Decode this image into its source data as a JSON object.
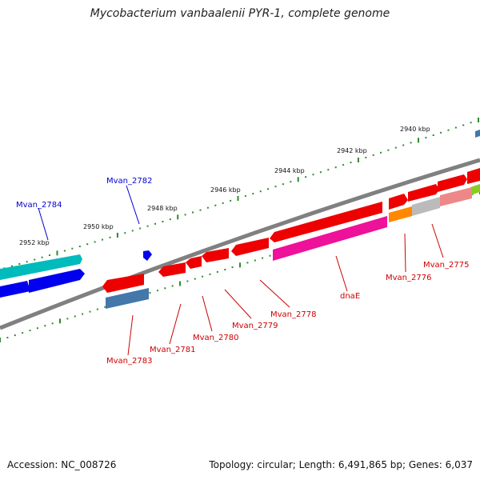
{
  "title": "Mycobacterium vanbaalenii PYR-1, complete genome",
  "footer": {
    "accession": "Accession: NC_008726",
    "summary": "Topology: circular; Length: 6,491,865 bp; Genes: 6,037"
  },
  "scale": {
    "unit": "kbp",
    "ticks": [
      "2940 kbp",
      "2942 kbp",
      "2944 kbp",
      "2946 kbp",
      "2948 kbp",
      "2950 kbp",
      "2952 kbp"
    ]
  },
  "labels": {
    "forward": [
      "Mvan_2784",
      "Mvan_2782"
    ],
    "reverse": [
      "Mvan_2783",
      "Mvan_2781",
      "Mvan_2780",
      "Mvan_2779",
      "Mvan_2778",
      "dnaE",
      "Mvan_2776",
      "Mvan_2775"
    ]
  },
  "colors": {
    "backbone": "#808080",
    "tick": "#2e8b2e",
    "forward_label": "#0000cc",
    "reverse_label": "#cc0000",
    "gene_red": "#ee0000",
    "gene_blue": "#0000ee",
    "gene_cyan": "#00bbbb",
    "gene_magenta": "#ee1199",
    "gene_steel": "#4477aa",
    "gene_orange": "#ff8800",
    "gene_gray": "#bbbbbb",
    "gene_pink": "#ee8888",
    "gene_lime": "#88cc22"
  }
}
